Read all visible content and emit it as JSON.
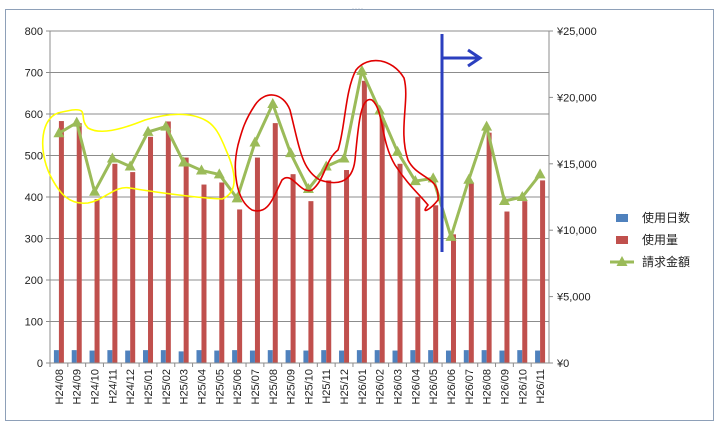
{
  "chart_data": {
    "type": "bar",
    "categories": [
      "H24/08",
      "H24/09",
      "H24/10",
      "H24/11",
      "H24/12",
      "H25/01",
      "H25/02",
      "H25/03",
      "H25/04",
      "H25/05",
      "H25/06",
      "H25/07",
      "H25/08",
      "H25/09",
      "H25/10",
      "H25/11",
      "H25/12",
      "H26/01",
      "H26/02",
      "H26/03",
      "H26/04",
      "H26/05",
      "H26/06",
      "H26/07",
      "H26/08",
      "H26/09",
      "H26/10",
      "H26/11"
    ],
    "series": [
      {
        "name": "使用日数",
        "axis": "left",
        "color": "#4f81bd",
        "values": [
          31,
          31,
          30,
          31,
          30,
          31,
          31,
          28,
          31,
          30,
          31,
          30,
          31,
          31,
          30,
          31,
          30,
          31,
          31,
          30,
          31,
          31,
          30,
          31,
          31,
          30,
          31,
          30
        ]
      },
      {
        "name": "使用量",
        "axis": "left",
        "color": "#c0504d",
        "values": [
          583,
          578,
          395,
          480,
          460,
          545,
          582,
          495,
          430,
          435,
          370,
          495,
          578,
          455,
          390,
          440,
          465,
          680,
          590,
          480,
          400,
          380,
          310,
          435,
          555,
          365,
          390,
          440
        ]
      },
      {
        "name": "請求金額",
        "axis": "right",
        "type": "line",
        "color": "#9bbb59",
        "values": [
          17300,
          18100,
          12900,
          15400,
          14800,
          17400,
          17800,
          15100,
          14500,
          14200,
          12400,
          16600,
          19500,
          15800,
          13100,
          14800,
          15400,
          22000,
          19000,
          15900,
          13700,
          13900,
          9500,
          13800,
          17800,
          12200,
          12500,
          14200
        ]
      }
    ],
    "yaxis_left": {
      "min": 0,
      "max": 800,
      "ticks": [
        "0",
        "100",
        "200",
        "300",
        "400",
        "500",
        "600",
        "700",
        "800"
      ]
    },
    "yaxis_right": {
      "min": 0,
      "max": 25000,
      "ticks": [
        "¥0",
        "¥5,000",
        "¥10,000",
        "¥15,000",
        "¥20,000",
        "¥25,000"
      ]
    },
    "gridlines": true,
    "legend_position": "right",
    "annotations": [
      {
        "type": "freehand-circle",
        "color": "#ffff00",
        "around": "H24/08–H25/05"
      },
      {
        "type": "freehand-circle",
        "color": "#e00000",
        "around": "H25/06–H26/05"
      },
      {
        "type": "arrow",
        "color": "#2b3fbf",
        "at": "H26/06",
        "direction": "right"
      }
    ]
  }
}
